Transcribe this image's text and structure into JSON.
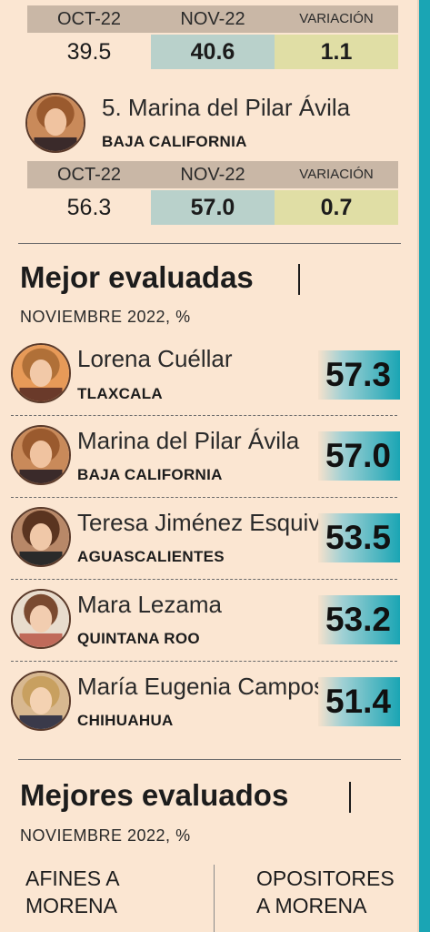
{
  "comparisons": [
    {
      "name": "",
      "state": "",
      "headers": {
        "oct": "OCT-22",
        "nov": "NOV-22",
        "var": "VARIACIÓN"
      },
      "oct": "39.5",
      "nov": "40.6",
      "var": "1.1"
    },
    {
      "name": "5. Marina del Pilar Ávila",
      "state": "BAJA CALIFORNIA",
      "headers": {
        "oct": "OCT-22",
        "nov": "NOV-22",
        "var": "VARIACIÓN"
      },
      "oct": "56.3",
      "nov": "57.0",
      "var": "0.7"
    }
  ],
  "chart_data": {
    "type": "bar",
    "title": "Mejor evaluadas",
    "subtitle": "NOVIEMBRE 2022, %",
    "categories": [
      "Lorena Cuéllar",
      "Marina del Pilar Ávila",
      "Teresa Jiménez Esquivel",
      "Mara Lezama",
      "María Eugenia Campos"
    ],
    "states": [
      "TLAXCALA",
      "BAJA CALIFORNIA",
      "AGUASCALIENTES",
      "QUINTANA ROO",
      "CHIHUAHUA"
    ],
    "values": [
      57.3,
      57.0,
      53.5,
      53.2,
      51.4
    ],
    "value_labels": [
      "57.3",
      "57.0",
      "53.5",
      "53.2",
      "51.4"
    ]
  },
  "section2": {
    "title": "Mejores evaluados",
    "subtitle": "NOVIEMBRE 2022, %",
    "col_left": [
      "AFINES A",
      "MORENA"
    ],
    "col_right": [
      "OPOSITORES",
      "A MORENA"
    ]
  },
  "colors": {
    "accent": "#1aa5b4",
    "nov_fill": "#b9d1cb",
    "var_fill": "#e0dea5",
    "header_fill": "#c9b7a6"
  }
}
